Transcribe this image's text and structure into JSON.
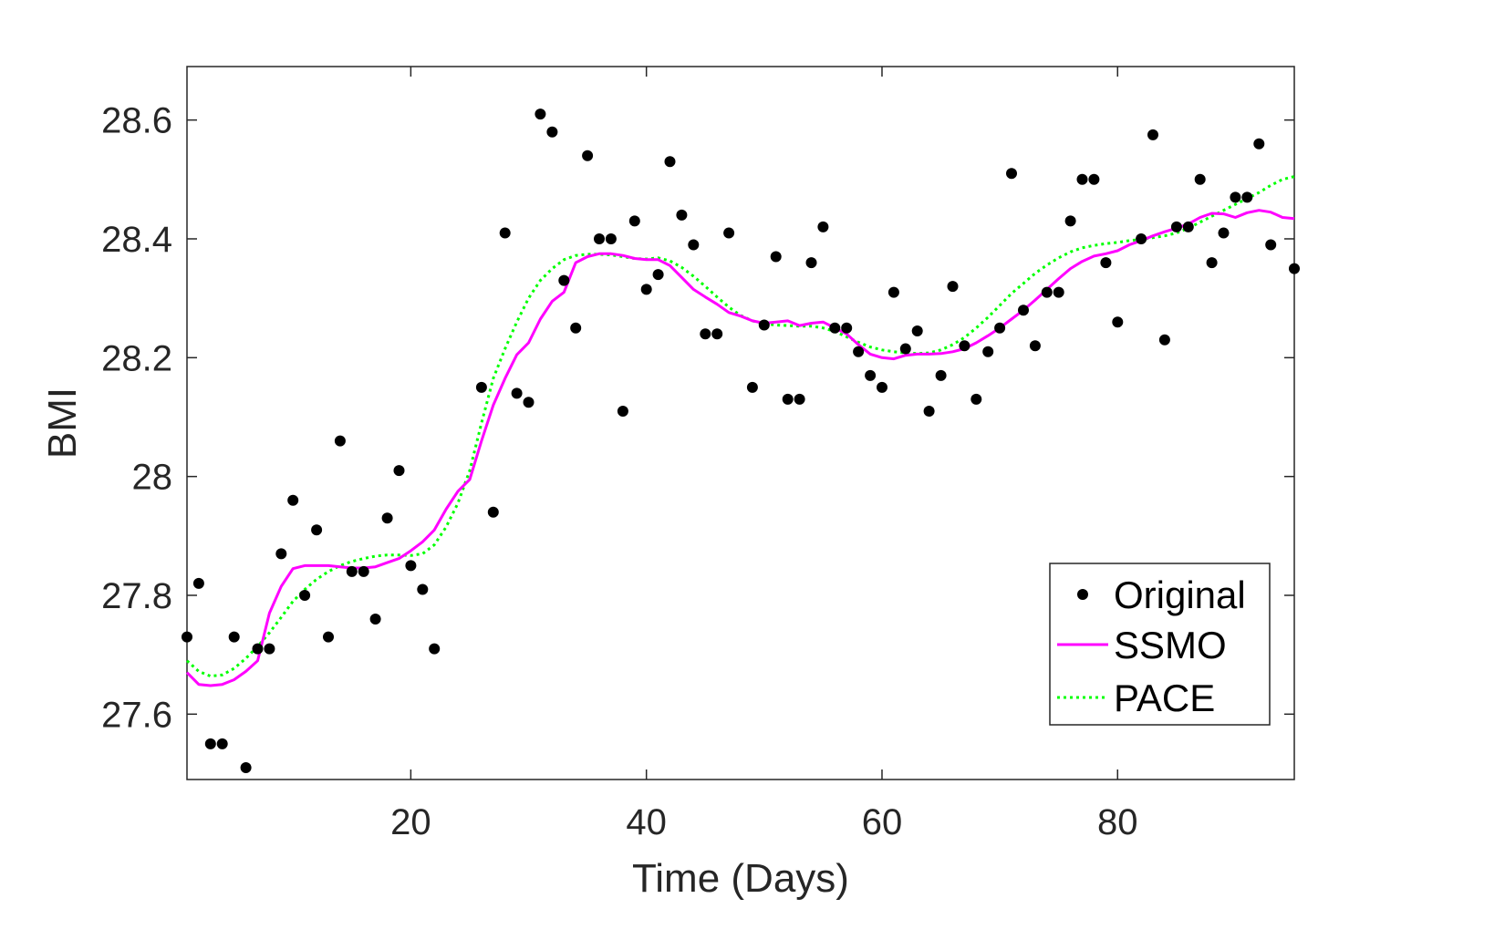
{
  "chart_data": {
    "type": "line",
    "title": "",
    "xlabel": "Time (Days)",
    "ylabel": "BMI",
    "xlim": [
      1,
      95
    ],
    "ylim": [
      27.49,
      28.69
    ],
    "xticks": [
      20,
      40,
      60,
      80
    ],
    "xtick_labels": [
      "20",
      "40",
      "60",
      "80"
    ],
    "yticks": [
      27.6,
      27.8,
      28.0,
      28.2,
      28.4,
      28.6
    ],
    "ytick_labels": [
      "27.6",
      "27.8",
      "28",
      "28.2",
      "28.4",
      "28.6"
    ],
    "grid": false,
    "legend_position": "bottom-right",
    "legend": [
      "Original",
      "SSMO",
      "PACE"
    ],
    "colors": {
      "original": "#000000",
      "ssmo": "#ff00ff",
      "pace": "#00ff00",
      "axis": "#262626"
    },
    "series": [
      {
        "name": "Original",
        "style": "markers",
        "points": [
          [
            1,
            27.73
          ],
          [
            2,
            27.82
          ],
          [
            3,
            27.55
          ],
          [
            4,
            27.55
          ],
          [
            5,
            27.73
          ],
          [
            6,
            27.51
          ],
          [
            7,
            27.71
          ],
          [
            8,
            27.71
          ],
          [
            9,
            27.87
          ],
          [
            10,
            27.96
          ],
          [
            11,
            27.8
          ],
          [
            12,
            27.91
          ],
          [
            13,
            27.73
          ],
          [
            14,
            28.06
          ],
          [
            15,
            27.84
          ],
          [
            16,
            27.84
          ],
          [
            17,
            27.76
          ],
          [
            18,
            27.93
          ],
          [
            19,
            28.01
          ],
          [
            20,
            27.85
          ],
          [
            21,
            27.81
          ],
          [
            22,
            27.71
          ],
          [
            26,
            28.15
          ],
          [
            27,
            27.94
          ],
          [
            28,
            28.41
          ],
          [
            29,
            28.14
          ],
          [
            30,
            28.125
          ],
          [
            31,
            28.61
          ],
          [
            32,
            28.58
          ],
          [
            33,
            28.33
          ],
          [
            34,
            28.25
          ],
          [
            35,
            28.54
          ],
          [
            36,
            28.4
          ],
          [
            37,
            28.4
          ],
          [
            38,
            28.11
          ],
          [
            39,
            28.43
          ],
          [
            40,
            28.315
          ],
          [
            41,
            28.34
          ],
          [
            42,
            28.53
          ],
          [
            43,
            28.44
          ],
          [
            44,
            28.39
          ],
          [
            45,
            28.24
          ],
          [
            46,
            28.24
          ],
          [
            47,
            28.41
          ],
          [
            49,
            28.15
          ],
          [
            50,
            28.255
          ],
          [
            51,
            28.37
          ],
          [
            52,
            28.13
          ],
          [
            53,
            28.13
          ],
          [
            54,
            28.36
          ],
          [
            55,
            28.42
          ],
          [
            56,
            28.25
          ],
          [
            57,
            28.25
          ],
          [
            58,
            28.21
          ],
          [
            59,
            28.17
          ],
          [
            60,
            28.15
          ],
          [
            61,
            28.31
          ],
          [
            62,
            28.215
          ],
          [
            63,
            28.245
          ],
          [
            64,
            28.11
          ],
          [
            65,
            28.17
          ],
          [
            66,
            28.32
          ],
          [
            67,
            28.22
          ],
          [
            68,
            28.13
          ],
          [
            69,
            28.21
          ],
          [
            70,
            28.25
          ],
          [
            71,
            28.51
          ],
          [
            72,
            28.28
          ],
          [
            73,
            28.22
          ],
          [
            74,
            28.31
          ],
          [
            75,
            28.31
          ],
          [
            76,
            28.43
          ],
          [
            77,
            28.5
          ],
          [
            78,
            28.5
          ],
          [
            79,
            28.36
          ],
          [
            80,
            28.26
          ],
          [
            82,
            28.4
          ],
          [
            83,
            28.575
          ],
          [
            84,
            28.23
          ],
          [
            85,
            28.42
          ],
          [
            86,
            28.42
          ],
          [
            87,
            28.5
          ],
          [
            88,
            28.36
          ],
          [
            89,
            28.41
          ],
          [
            90,
            28.47
          ],
          [
            91,
            28.47
          ],
          [
            92,
            28.56
          ],
          [
            93,
            28.39
          ],
          [
            95,
            28.35
          ]
        ]
      },
      {
        "name": "SSMO",
        "style": "solid",
        "points": [
          [
            1,
            27.67
          ],
          [
            2,
            27.65
          ],
          [
            3,
            27.648
          ],
          [
            4,
            27.65
          ],
          [
            5,
            27.658
          ],
          [
            6,
            27.672
          ],
          [
            7,
            27.69
          ],
          [
            8,
            27.77
          ],
          [
            9,
            27.815
          ],
          [
            10,
            27.845
          ],
          [
            11,
            27.85
          ],
          [
            12,
            27.85
          ],
          [
            13,
            27.85
          ],
          [
            14,
            27.848
          ],
          [
            15,
            27.846
          ],
          [
            16,
            27.846
          ],
          [
            17,
            27.848
          ],
          [
            18,
            27.855
          ],
          [
            19,
            27.862
          ],
          [
            20,
            27.875
          ],
          [
            21,
            27.89
          ],
          [
            22,
            27.91
          ],
          [
            23,
            27.945
          ],
          [
            24,
            27.975
          ],
          [
            25,
            27.995
          ],
          [
            26,
            28.06
          ],
          [
            27,
            28.12
          ],
          [
            28,
            28.165
          ],
          [
            29,
            28.205
          ],
          [
            30,
            28.225
          ],
          [
            31,
            28.265
          ],
          [
            32,
            28.295
          ],
          [
            33,
            28.31
          ],
          [
            34,
            28.36
          ],
          [
            35,
            28.37
          ],
          [
            36,
            28.375
          ],
          [
            37,
            28.375
          ],
          [
            38,
            28.372
          ],
          [
            39,
            28.367
          ],
          [
            40,
            28.365
          ],
          [
            41,
            28.365
          ],
          [
            42,
            28.355
          ],
          [
            43,
            28.335
          ],
          [
            44,
            28.315
          ],
          [
            45,
            28.302
          ],
          [
            46,
            28.29
          ],
          [
            47,
            28.276
          ],
          [
            48,
            28.27
          ],
          [
            49,
            28.262
          ],
          [
            50,
            28.258
          ],
          [
            51,
            28.26
          ],
          [
            52,
            28.262
          ],
          [
            53,
            28.254
          ],
          [
            54,
            28.258
          ],
          [
            55,
            28.26
          ],
          [
            56,
            28.25
          ],
          [
            57,
            28.24
          ],
          [
            58,
            28.222
          ],
          [
            59,
            28.206
          ],
          [
            60,
            28.2
          ],
          [
            61,
            28.198
          ],
          [
            62,
            28.204
          ],
          [
            63,
            28.206
          ],
          [
            64,
            28.206
          ],
          [
            65,
            28.207
          ],
          [
            66,
            28.21
          ],
          [
            67,
            28.215
          ],
          [
            68,
            28.225
          ],
          [
            69,
            28.237
          ],
          [
            70,
            28.25
          ],
          [
            71,
            28.265
          ],
          [
            72,
            28.28
          ],
          [
            73,
            28.297
          ],
          [
            74,
            28.315
          ],
          [
            75,
            28.333
          ],
          [
            76,
            28.35
          ],
          [
            77,
            28.362
          ],
          [
            78,
            28.371
          ],
          [
            79,
            28.375
          ],
          [
            80,
            28.38
          ],
          [
            81,
            28.39
          ],
          [
            82,
            28.397
          ],
          [
            83,
            28.405
          ],
          [
            84,
            28.412
          ],
          [
            85,
            28.418
          ],
          [
            86,
            28.425
          ],
          [
            87,
            28.436
          ],
          [
            88,
            28.443
          ],
          [
            89,
            28.442
          ],
          [
            90,
            28.436
          ],
          [
            91,
            28.444
          ],
          [
            92,
            28.448
          ],
          [
            93,
            28.445
          ],
          [
            94,
            28.436
          ],
          [
            95,
            28.434
          ]
        ]
      },
      {
        "name": "PACE",
        "style": "dotted",
        "points": [
          [
            1,
            27.69
          ],
          [
            2,
            27.672
          ],
          [
            3,
            27.664
          ],
          [
            4,
            27.666
          ],
          [
            5,
            27.677
          ],
          [
            6,
            27.694
          ],
          [
            7,
            27.714
          ],
          [
            8,
            27.737
          ],
          [
            9,
            27.763
          ],
          [
            10,
            27.79
          ],
          [
            11,
            27.81
          ],
          [
            12,
            27.827
          ],
          [
            13,
            27.84
          ],
          [
            14,
            27.85
          ],
          [
            15,
            27.857
          ],
          [
            16,
            27.862
          ],
          [
            17,
            27.866
          ],
          [
            18,
            27.868
          ],
          [
            19,
            27.868
          ],
          [
            20,
            27.867
          ],
          [
            21,
            27.87
          ],
          [
            22,
            27.885
          ],
          [
            23,
            27.915
          ],
          [
            24,
            27.955
          ],
          [
            25,
            28.01
          ],
          [
            26,
            28.09
          ],
          [
            27,
            28.165
          ],
          [
            28,
            28.215
          ],
          [
            29,
            28.26
          ],
          [
            30,
            28.3
          ],
          [
            31,
            28.33
          ],
          [
            32,
            28.35
          ],
          [
            33,
            28.365
          ],
          [
            34,
            28.372
          ],
          [
            35,
            28.374
          ],
          [
            36,
            28.374
          ],
          [
            37,
            28.373
          ],
          [
            38,
            28.37
          ],
          [
            39,
            28.367
          ],
          [
            40,
            28.366
          ],
          [
            41,
            28.368
          ],
          [
            42,
            28.363
          ],
          [
            43,
            28.352
          ],
          [
            44,
            28.337
          ],
          [
            45,
            28.32
          ],
          [
            46,
            28.302
          ],
          [
            47,
            28.285
          ],
          [
            48,
            28.271
          ],
          [
            49,
            28.262
          ],
          [
            50,
            28.257
          ],
          [
            51,
            28.255
          ],
          [
            52,
            28.254
          ],
          [
            53,
            28.253
          ],
          [
            54,
            28.253
          ],
          [
            55,
            28.25
          ],
          [
            56,
            28.244
          ],
          [
            57,
            28.235
          ],
          [
            58,
            28.226
          ],
          [
            59,
            28.218
          ],
          [
            60,
            28.213
          ],
          [
            61,
            28.21
          ],
          [
            62,
            28.208
          ],
          [
            63,
            28.207
          ],
          [
            64,
            28.208
          ],
          [
            65,
            28.213
          ],
          [
            66,
            28.222
          ],
          [
            67,
            28.234
          ],
          [
            68,
            28.25
          ],
          [
            69,
            28.268
          ],
          [
            70,
            28.288
          ],
          [
            71,
            28.308
          ],
          [
            72,
            28.325
          ],
          [
            73,
            28.342
          ],
          [
            74,
            28.356
          ],
          [
            75,
            28.368
          ],
          [
            76,
            28.378
          ],
          [
            77,
            28.385
          ],
          [
            78,
            28.389
          ],
          [
            79,
            28.392
          ],
          [
            80,
            28.394
          ],
          [
            81,
            28.397
          ],
          [
            82,
            28.399
          ],
          [
            83,
            28.402
          ],
          [
            84,
            28.405
          ],
          [
            85,
            28.41
          ],
          [
            86,
            28.418
          ],
          [
            87,
            28.428
          ],
          [
            88,
            28.438
          ],
          [
            89,
            28.448
          ],
          [
            90,
            28.458
          ],
          [
            91,
            28.468
          ],
          [
            92,
            28.478
          ],
          [
            93,
            28.49
          ],
          [
            94,
            28.5
          ],
          [
            95,
            28.505
          ]
        ]
      }
    ]
  }
}
